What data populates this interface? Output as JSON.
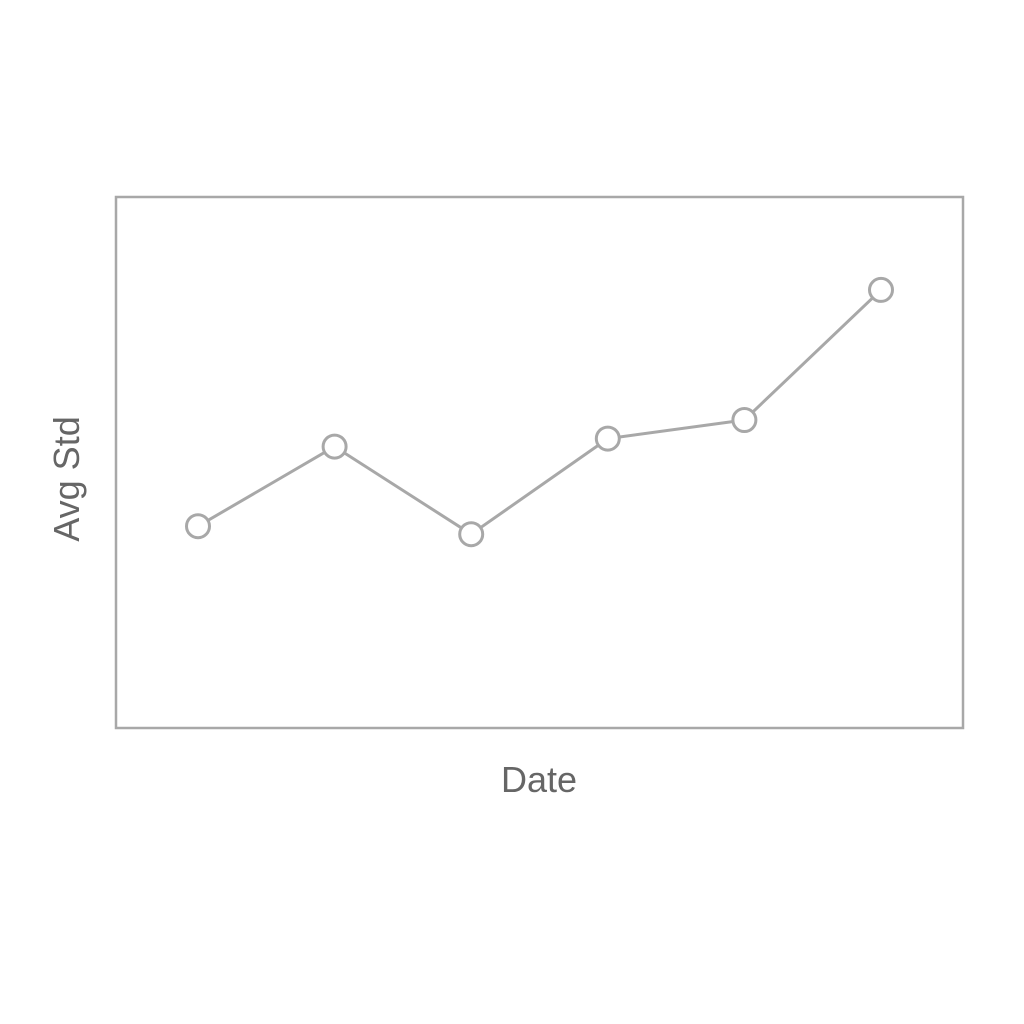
{
  "chart_data": {
    "type": "line",
    "title": "",
    "xlabel": "Date",
    "ylabel": "Avg Std",
    "x": [
      1,
      2,
      3,
      4,
      5,
      6
    ],
    "series": [
      {
        "values": [
          3.8,
          5.3,
          3.65,
          5.45,
          5.8,
          8.25
        ]
      }
    ],
    "xlim": [
      0.4,
      6.6
    ],
    "ylim": [
      0,
      10
    ],
    "grid": false,
    "legend": "none",
    "marker": "open-circle",
    "colors": {
      "line": "#a8a8a8",
      "frame": "#a8a8a8",
      "text": "#666666"
    }
  }
}
